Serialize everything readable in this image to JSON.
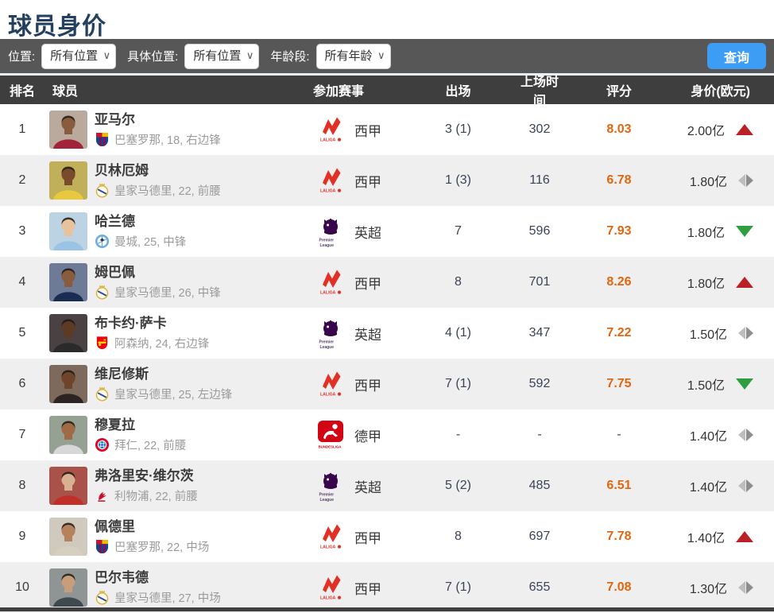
{
  "page": {
    "title": "球员身价"
  },
  "filters": {
    "position_label": "位置:",
    "position_value": "所有位置",
    "specific_label": "具体位置:",
    "specific_value": "所有位置",
    "age_label": "年龄段:",
    "age_value": "所有年龄",
    "search_button": "查询"
  },
  "table": {
    "headers": {
      "rank": "排名",
      "player": "球员",
      "league": "参加赛事",
      "appearances": "出场",
      "minutes": "上场时间",
      "rating": "评分",
      "value": "身价(欧元)"
    },
    "rows": [
      {
        "rank": "1",
        "name": "亚马尔",
        "club_info": "巴塞罗那, 18, 右边锋",
        "club": "barcelona",
        "league": "laliga",
        "league_name": "西甲",
        "appearances": "3 (1)",
        "minutes": "302",
        "rating": "8.03",
        "value": "2.00亿",
        "trend": "up",
        "avatar": {
          "bg": "#b9aa9d",
          "skin": "#8a5c3e",
          "shirt": "#a3243a"
        }
      },
      {
        "rank": "2",
        "name": "贝林厄姆",
        "club_info": "皇家马德里, 22, 前腰",
        "club": "realmadrid",
        "league": "laliga",
        "league_name": "西甲",
        "appearances": "1 (3)",
        "minutes": "116",
        "rating": "6.78",
        "value": "1.80亿",
        "trend": "steady",
        "avatar": {
          "bg": "#c0b059",
          "skin": "#7a4a2c",
          "shirt": "#e8c93e"
        }
      },
      {
        "rank": "3",
        "name": "哈兰德",
        "club_info": "曼城, 25, 中锋",
        "club": "mancity",
        "league": "epl",
        "league_name": "英超",
        "appearances": "7",
        "minutes": "596",
        "rating": "7.93",
        "value": "1.80亿",
        "trend": "down",
        "avatar": {
          "bg": "#bcd3e3",
          "skin": "#e8c29a",
          "shirt": "#9bc4e4"
        }
      },
      {
        "rank": "4",
        "name": "姆巴佩",
        "club_info": "皇家马德里, 26, 中锋",
        "club": "realmadrid",
        "league": "laliga",
        "league_name": "西甲",
        "appearances": "8",
        "minutes": "701",
        "rating": "8.26",
        "value": "1.80亿",
        "trend": "up",
        "avatar": {
          "bg": "#6d7b96",
          "skin": "#8a5c3e",
          "shirt": "#1b2c52"
        }
      },
      {
        "rank": "5",
        "name": "布卡约·萨卡",
        "club_info": "阿森纳, 24, 右边锋",
        "club": "arsenal",
        "league": "epl",
        "league_name": "英超",
        "appearances": "4 (1)",
        "minutes": "347",
        "rating": "7.22",
        "value": "1.50亿",
        "trend": "steady",
        "avatar": {
          "bg": "#4a4242",
          "skin": "#5c3a24",
          "shirt": "#2a2a2a"
        }
      },
      {
        "rank": "6",
        "name": "维尼修斯",
        "club_info": "皇家马德里, 25, 左边锋",
        "club": "realmadrid",
        "league": "laliga",
        "league_name": "西甲",
        "appearances": "7 (1)",
        "minutes": "592",
        "rating": "7.75",
        "value": "1.50亿",
        "trend": "down",
        "avatar": {
          "bg": "#7d6a5c",
          "skin": "#6e452b",
          "shirt": "#2c2420"
        }
      },
      {
        "rank": "7",
        "name": "穆夏拉",
        "club_info": "拜仁, 22, 前腰",
        "club": "bayern",
        "league": "bundesliga",
        "league_name": "德甲",
        "appearances": "-",
        "minutes": "-",
        "rating": "-",
        "value": "1.40亿",
        "trend": "steady",
        "avatar": {
          "bg": "#95a193",
          "skin": "#a06a44",
          "shirt": "#d8d8d8"
        }
      },
      {
        "rank": "8",
        "name": "弗洛里安·维尔茨",
        "club_info": "利物浦, 22, 前腰",
        "club": "liverpool",
        "league": "epl",
        "league_name": "英超",
        "appearances": "5 (2)",
        "minutes": "485",
        "rating": "6.51",
        "value": "1.40亿",
        "trend": "steady",
        "avatar": {
          "bg": "#a8524a",
          "skin": "#d8b193",
          "shirt": "#c03028"
        }
      },
      {
        "rank": "9",
        "name": "佩德里",
        "club_info": "巴塞罗那, 22, 中场",
        "club": "barcelona",
        "league": "laliga",
        "league_name": "西甲",
        "appearances": "8",
        "minutes": "697",
        "rating": "7.78",
        "value": "1.40亿",
        "trend": "up",
        "avatar": {
          "bg": "#cfc9be",
          "skin": "#b5825c",
          "shirt": "#d6cfc0"
        }
      },
      {
        "rank": "10",
        "name": "巴尔韦德",
        "club_info": "皇家马德里, 27, 中场",
        "club": "realmadrid",
        "league": "laliga",
        "league_name": "西甲",
        "appearances": "7 (1)",
        "minutes": "655",
        "rating": "7.08",
        "value": "1.30亿",
        "trend": "steady",
        "avatar": {
          "bg": "#8f9494",
          "skin": "#c79d7c",
          "shirt": "#3f4a50"
        }
      }
    ]
  },
  "colors": {
    "accent_blue": "#3d9cf3",
    "rating_orange": "#e0660f",
    "trend_up_red": "#ba2025",
    "trend_down_green": "#2f9e41",
    "trend_steady_gray": "#9e9e9e",
    "header_dark": "#3e3e3e",
    "filterbar_gray": "#575757",
    "row_alt_gray": "#efefef",
    "title_navy": "#24405e"
  }
}
